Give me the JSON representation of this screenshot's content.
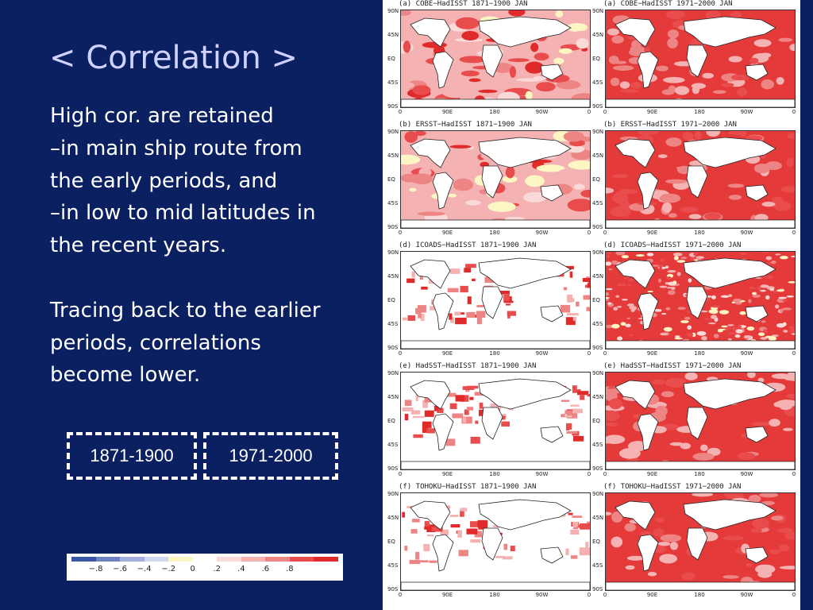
{
  "slide": {
    "title": "< Correlation >",
    "body": {
      "line1": "High cor. are retained",
      "line2": "–in main ship route from",
      "line3": "the early periods, and",
      "line4": "–in low to mid latitudes in",
      "line5": "the recent years.",
      "line6": "Tracing back to the earlier",
      "line7": "periods, correlations",
      "line8": "become lower."
    },
    "periods": [
      "1871-1900",
      "1971-2000"
    ],
    "legend": {
      "colors": [
        "#3a57a6",
        "#6e82c0",
        "#a3aede",
        "#d2d8ef",
        "#fbf6c4",
        "#ffffff",
        "#f9d9d9",
        "#f4b2b2",
        "#ee8585",
        "#e84c4c",
        "#e12b2b"
      ],
      "labels": [
        "−.8",
        "−.6",
        "−.4",
        "−.2",
        "0",
        ".2",
        ".4",
        ".6",
        ".8"
      ]
    },
    "map_axes": {
      "lat": [
        "90N",
        "45N",
        "EQ",
        "45S",
        "90S"
      ],
      "lon": [
        "0",
        "90E",
        "180",
        "90W",
        "0"
      ]
    },
    "panels": [
      {
        "title": "(a) COBE−HadISST 1871−1900 JAN",
        "coverage": "partial"
      },
      {
        "title": "(a) COBE−HadISST 1971−2000 JAN",
        "coverage": "full"
      },
      {
        "title": "(b) ERSST−HadISST 1871−1900 JAN",
        "coverage": "partial"
      },
      {
        "title": "(b) ERSST−HadISST 1971−2000 JAN",
        "coverage": "full"
      },
      {
        "title": "(d) ICOADS−HadISST 1871−1900 JAN",
        "coverage": "sparse"
      },
      {
        "title": "(d) ICOADS−HadISST 1971−2000 JAN",
        "coverage": "noisy"
      },
      {
        "title": "(e) HadSST−HadISST 1871−1900 JAN",
        "coverage": "sparse"
      },
      {
        "title": "(e) HadSST−HadISST 1971−2000 JAN",
        "coverage": "full"
      },
      {
        "title": "(f) TOHOKU−HadISST 1871−1900 JAN",
        "coverage": "sparse"
      },
      {
        "title": "(f) TOHOKU−HadISST 1971−2000 JAN",
        "coverage": "full"
      }
    ]
  }
}
